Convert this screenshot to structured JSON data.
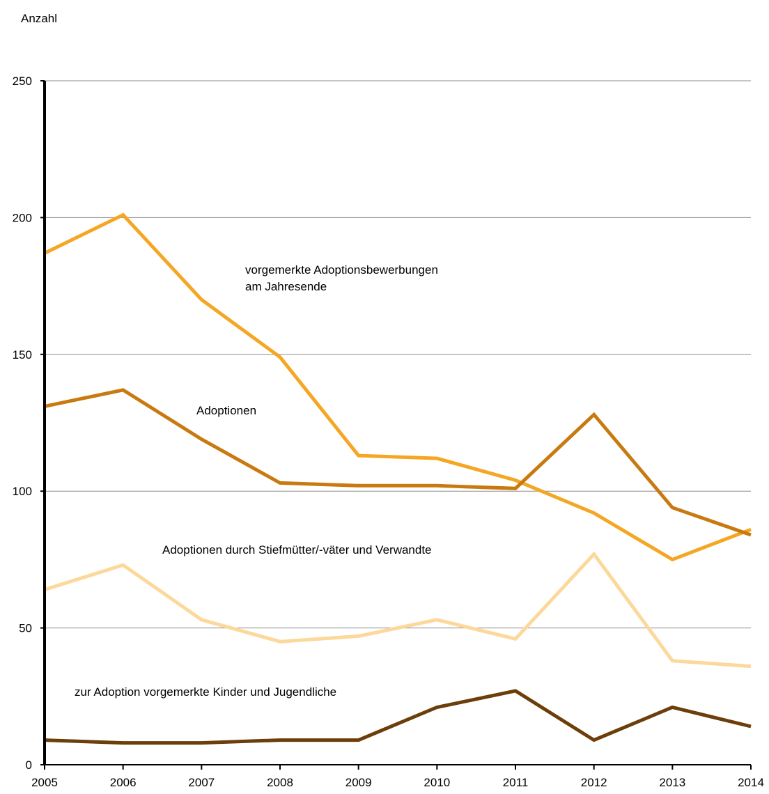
{
  "chart_data": {
    "type": "line",
    "title": "",
    "ylabel": "Anzahl",
    "xlabel": "",
    "categories": [
      "2005",
      "2006",
      "2007",
      "2008",
      "2009",
      "2010",
      "2011",
      "2012",
      "2013",
      "2014"
    ],
    "ylim": [
      0,
      250
    ],
    "yticks": [
      0,
      50,
      100,
      150,
      200,
      250
    ],
    "grid": true,
    "legend": "none",
    "series": [
      {
        "name": "vorgemerkte Adoptionsbewerbungen am Jahresende",
        "label_lines": [
          "vorgemerkte Adoptionsbewerbungen",
          "am Jahresende"
        ],
        "color": "#f5a623",
        "values": [
          187,
          201,
          170,
          149,
          113,
          112,
          104,
          92,
          75,
          86
        ]
      },
      {
        "name": "Adoptionen",
        "label_lines": [
          "Adoptionen"
        ],
        "color": "#c87a10",
        "values": [
          131,
          137,
          119,
          103,
          102,
          102,
          101,
          128,
          94,
          84
        ]
      },
      {
        "name": "Adoptionen durch Stiefmütter/-väter und Verwandte",
        "label_lines": [
          "Adoptionen durch Stiefmütter/-väter und Verwandte"
        ],
        "color": "#fcd89a",
        "values": [
          64,
          73,
          53,
          45,
          47,
          53,
          46,
          77,
          38,
          36
        ]
      },
      {
        "name": "zur Adoption vorgemerkte Kinder und Jugendliche",
        "label_lines": [
          "zur Adoption vorgemerkte Kinder und Jugendliche"
        ],
        "color": "#6b3e0a",
        "values": [
          9,
          8,
          8,
          9,
          9,
          21,
          27,
          9,
          21,
          14
        ]
      }
    ]
  }
}
